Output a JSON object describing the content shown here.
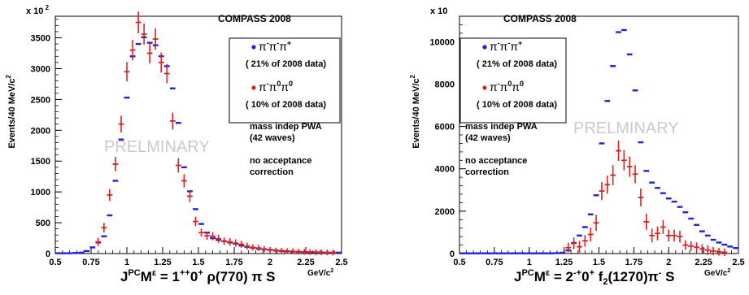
{
  "chart_data": [
    {
      "type": "scatter",
      "experiment_label": "COMPASS 2008",
      "y_multiplier_label": "x 10",
      "y_multiplier_exp": "2",
      "ylabel": "Events/40 MeV/c",
      "ylabel_sup": "2",
      "xunit": "GeV/c",
      "xunit_sup": "2",
      "xlabel_parts": [
        "J",
        "PC",
        "M",
        "ε",
        " = 1",
        "++",
        "0",
        "+",
        " ρ(770) π S"
      ],
      "xlim": [
        0.5,
        2.5
      ],
      "ylim": [
        0,
        3850
      ],
      "xticks": [
        0.5,
        0.75,
        1,
        1.25,
        1.5,
        1.75,
        2,
        2.25,
        2.5
      ],
      "xtick_labels": [
        "0.5",
        "0.75",
        "1",
        "1.25",
        "1.5",
        "1.75",
        "2",
        "2.25",
        "2.5"
      ],
      "yticks": [
        0,
        500,
        1000,
        1500,
        2000,
        2500,
        3000,
        3500
      ],
      "ytick_labels": [
        "0",
        "500",
        "1000",
        "1500",
        "2000",
        "2500",
        "3000",
        "3500"
      ],
      "legend": [
        {
          "color": "#1f1fe0",
          "label_base": "π",
          "label_sups": [
            "-",
            "-",
            "+"
          ],
          "sublabel": "( 21% of 2008 data)"
        },
        {
          "color": "#e01f1f",
          "label_base": "π",
          "label_sups": [
            "-",
            "0",
            "0"
          ],
          "sublabel": "( 10% of 2008 data)"
        }
      ],
      "notes": [
        "mass indep PWA",
        "(42 waves)",
        "",
        "no acceptance",
        "correction"
      ],
      "watermark": "PRELMINARY",
      "series": [
        {
          "name": "π-π-π+",
          "color": "#1f1fe0",
          "points": [
            {
              "x": 0.52,
              "y": 5
            },
            {
              "x": 0.56,
              "y": 5
            },
            {
              "x": 0.6,
              "y": 5
            },
            {
              "x": 0.64,
              "y": 10
            },
            {
              "x": 0.68,
              "y": 15
            },
            {
              "x": 0.72,
              "y": 40
            },
            {
              "x": 0.76,
              "y": 100
            },
            {
              "x": 0.8,
              "y": 180
            },
            {
              "x": 0.84,
              "y": 280
            },
            {
              "x": 0.88,
              "y": 620
            },
            {
              "x": 0.92,
              "y": 1180
            },
            {
              "x": 0.96,
              "y": 1850
            },
            {
              "x": 1.0,
              "y": 2530
            },
            {
              "x": 1.04,
              "y": 3200
            },
            {
              "x": 1.08,
              "y": 3400
            },
            {
              "x": 1.12,
              "y": 3510
            },
            {
              "x": 1.16,
              "y": 3420
            },
            {
              "x": 1.2,
              "y": 3380
            },
            {
              "x": 1.24,
              "y": 3200
            },
            {
              "x": 1.28,
              "y": 3040
            },
            {
              "x": 1.32,
              "y": 2680
            },
            {
              "x": 1.36,
              "y": 2120
            },
            {
              "x": 1.4,
              "y": 1400
            },
            {
              "x": 1.44,
              "y": 1010
            },
            {
              "x": 1.48,
              "y": 720
            },
            {
              "x": 1.52,
              "y": 480
            },
            {
              "x": 1.56,
              "y": 340
            },
            {
              "x": 1.6,
              "y": 250
            },
            {
              "x": 1.64,
              "y": 220
            },
            {
              "x": 1.68,
              "y": 200
            },
            {
              "x": 1.72,
              "y": 180
            },
            {
              "x": 1.76,
              "y": 160
            },
            {
              "x": 1.8,
              "y": 130
            },
            {
              "x": 1.84,
              "y": 110
            },
            {
              "x": 1.88,
              "y": 95
            },
            {
              "x": 1.92,
              "y": 80
            },
            {
              "x": 1.96,
              "y": 70
            },
            {
              "x": 2.0,
              "y": 60
            },
            {
              "x": 2.04,
              "y": 50
            },
            {
              "x": 2.08,
              "y": 42
            },
            {
              "x": 2.12,
              "y": 36
            },
            {
              "x": 2.16,
              "y": 32
            },
            {
              "x": 2.2,
              "y": 28
            },
            {
              "x": 2.24,
              "y": 25
            },
            {
              "x": 2.28,
              "y": 22
            },
            {
              "x": 2.32,
              "y": 20
            },
            {
              "x": 2.36,
              "y": 18
            },
            {
              "x": 2.4,
              "y": 16
            },
            {
              "x": 2.44,
              "y": 15
            },
            {
              "x": 2.48,
              "y": 14
            }
          ]
        },
        {
          "name": "π-π0π0",
          "color": "#e01f1f",
          "points": [
            {
              "x": 0.8,
              "y": 190,
              "err": 40
            },
            {
              "x": 0.84,
              "y": 420,
              "err": 50
            },
            {
              "x": 0.88,
              "y": 950,
              "err": 70
            },
            {
              "x": 0.92,
              "y": 1450,
              "err": 90
            },
            {
              "x": 0.96,
              "y": 2100,
              "err": 110
            },
            {
              "x": 1.0,
              "y": 2950,
              "err": 130
            },
            {
              "x": 1.04,
              "y": 3300,
              "err": 140
            },
            {
              "x": 1.08,
              "y": 3750,
              "err": 150
            },
            {
              "x": 1.12,
              "y": 3560,
              "err": 145
            },
            {
              "x": 1.16,
              "y": 3250,
              "err": 140
            },
            {
              "x": 1.2,
              "y": 3480,
              "err": 145
            },
            {
              "x": 1.24,
              "y": 3100,
              "err": 135
            },
            {
              "x": 1.28,
              "y": 2920,
              "err": 130
            },
            {
              "x": 1.32,
              "y": 2150,
              "err": 110
            },
            {
              "x": 1.36,
              "y": 1430,
              "err": 90
            },
            {
              "x": 1.4,
              "y": 1180,
              "err": 80
            },
            {
              "x": 1.44,
              "y": 930,
              "err": 70
            },
            {
              "x": 1.48,
              "y": 520,
              "err": 50
            },
            {
              "x": 1.52,
              "y": 340,
              "err": 40
            },
            {
              "x": 1.56,
              "y": 290,
              "err": 40
            },
            {
              "x": 1.6,
              "y": 280,
              "err": 40
            },
            {
              "x": 1.64,
              "y": 240,
              "err": 40
            },
            {
              "x": 1.68,
              "y": 200,
              "err": 35
            },
            {
              "x": 1.72,
              "y": 190,
              "err": 35
            },
            {
              "x": 1.76,
              "y": 170,
              "err": 35
            },
            {
              "x": 1.8,
              "y": 150,
              "err": 30
            },
            {
              "x": 1.84,
              "y": 120,
              "err": 30
            },
            {
              "x": 1.88,
              "y": 100,
              "err": 25
            },
            {
              "x": 1.92,
              "y": 90,
              "err": 25
            },
            {
              "x": 1.96,
              "y": 70,
              "err": 25
            },
            {
              "x": 2.0,
              "y": 60,
              "err": 20
            },
            {
              "x": 2.04,
              "y": 50,
              "err": 20
            },
            {
              "x": 2.08,
              "y": 45,
              "err": 20
            },
            {
              "x": 2.12,
              "y": 40,
              "err": 20
            },
            {
              "x": 2.16,
              "y": 35,
              "err": 20
            },
            {
              "x": 2.2,
              "y": 30,
              "err": 20
            },
            {
              "x": 2.24,
              "y": 28,
              "err": 20
            },
            {
              "x": 2.28,
              "y": 25,
              "err": 20
            },
            {
              "x": 2.32,
              "y": 22,
              "err": 20
            },
            {
              "x": 2.36,
              "y": 20,
              "err": 20
            },
            {
              "x": 2.4,
              "y": 18,
              "err": 20
            },
            {
              "x": 2.44,
              "y": 15,
              "err": 20
            }
          ]
        }
      ]
    },
    {
      "type": "scatter",
      "experiment_label": "COMPASS 2008",
      "y_multiplier_label": "x 10",
      "y_multiplier_exp": "",
      "ylabel": "Events/40 MeV/c",
      "ylabel_sup": "2",
      "xunit": "GeV/c",
      "xunit_sup": "2",
      "xlabel_parts": [
        "J",
        "PC",
        "M",
        "ε",
        " = 2",
        "-+",
        "0",
        "+",
        " f",
        "2",
        "(1270)π",
        "-",
        " S"
      ],
      "xlim": [
        0.5,
        2.5
      ],
      "ylim": [
        0,
        11200
      ],
      "xticks": [
        0.5,
        0.75,
        1,
        1.25,
        1.5,
        1.75,
        2,
        2.25,
        2.5
      ],
      "xtick_labels": [
        "0.5",
        "0.75",
        "1",
        "1.25",
        "1.5",
        "1.75",
        "2",
        "2.25",
        "2.5"
      ],
      "yticks": [
        0,
        2000,
        4000,
        6000,
        8000,
        10000
      ],
      "ytick_labels": [
        "0",
        "2000",
        "4000",
        "6000",
        "8000",
        "10000"
      ],
      "legend": [
        {
          "color": "#1f1fe0",
          "label_base": "π",
          "label_sups": [
            "-",
            "-",
            "+"
          ],
          "sublabel": "( 21% of 2008 data)"
        },
        {
          "color": "#e01f1f",
          "label_base": "π",
          "label_sups": [
            "-",
            "0",
            "0"
          ],
          "sublabel": "( 10% of 2008 data)"
        }
      ],
      "notes": [
        "mass indep PWA",
        "(42 waves)",
        "",
        "no acceptance",
        "correction"
      ],
      "watermark": "PRELMINARY",
      "series": [
        {
          "name": "π-π-π+",
          "color": "#1f1fe0",
          "points": [
            {
              "x": 0.52,
              "y": 10
            },
            {
              "x": 0.56,
              "y": 10
            },
            {
              "x": 0.6,
              "y": 10
            },
            {
              "x": 0.64,
              "y": 10
            },
            {
              "x": 0.68,
              "y": 10
            },
            {
              "x": 0.72,
              "y": 10
            },
            {
              "x": 0.76,
              "y": 10
            },
            {
              "x": 0.8,
              "y": 10
            },
            {
              "x": 0.84,
              "y": 10
            },
            {
              "x": 0.88,
              "y": 10
            },
            {
              "x": 0.92,
              "y": 10
            },
            {
              "x": 0.96,
              "y": 10
            },
            {
              "x": 1.0,
              "y": 10
            },
            {
              "x": 1.04,
              "y": 10
            },
            {
              "x": 1.08,
              "y": 10
            },
            {
              "x": 1.12,
              "y": 10
            },
            {
              "x": 1.16,
              "y": 10
            },
            {
              "x": 1.2,
              "y": 20
            },
            {
              "x": 1.24,
              "y": 40
            },
            {
              "x": 1.28,
              "y": 150
            },
            {
              "x": 1.32,
              "y": 500
            },
            {
              "x": 1.36,
              "y": 850
            },
            {
              "x": 1.4,
              "y": 1250
            },
            {
              "x": 1.44,
              "y": 1850
            },
            {
              "x": 1.48,
              "y": 2750
            },
            {
              "x": 1.52,
              "y": 5200
            },
            {
              "x": 1.56,
              "y": 7200
            },
            {
              "x": 1.6,
              "y": 8850
            },
            {
              "x": 1.64,
              "y": 10450
            },
            {
              "x": 1.68,
              "y": 10550
            },
            {
              "x": 1.72,
              "y": 9400
            },
            {
              "x": 1.76,
              "y": 7700
            },
            {
              "x": 1.8,
              "y": 5250
            },
            {
              "x": 1.84,
              "y": 3900
            },
            {
              "x": 1.88,
              "y": 3350
            },
            {
              "x": 1.92,
              "y": 3100
            },
            {
              "x": 1.96,
              "y": 2850
            },
            {
              "x": 2.0,
              "y": 2600
            },
            {
              "x": 2.04,
              "y": 2450
            },
            {
              "x": 2.08,
              "y": 2200
            },
            {
              "x": 2.12,
              "y": 1950
            },
            {
              "x": 2.16,
              "y": 1650
            },
            {
              "x": 2.2,
              "y": 1350
            },
            {
              "x": 2.24,
              "y": 1050
            },
            {
              "x": 2.28,
              "y": 850
            },
            {
              "x": 2.32,
              "y": 650
            },
            {
              "x": 2.36,
              "y": 520
            },
            {
              "x": 2.4,
              "y": 420
            },
            {
              "x": 2.44,
              "y": 330
            },
            {
              "x": 2.48,
              "y": 260
            }
          ]
        },
        {
          "name": "π-π0π0",
          "color": "#e01f1f",
          "points": [
            {
              "x": 1.28,
              "y": 280,
              "err": 150
            },
            {
              "x": 1.32,
              "y": 480,
              "err": 200
            },
            {
              "x": 1.36,
              "y": 320,
              "err": 200
            },
            {
              "x": 1.4,
              "y": 600,
              "err": 200
            },
            {
              "x": 1.44,
              "y": 900,
              "err": 250
            },
            {
              "x": 1.48,
              "y": 1450,
              "err": 300
            },
            {
              "x": 1.52,
              "y": 2950,
              "err": 350
            },
            {
              "x": 1.56,
              "y": 3250,
              "err": 350
            },
            {
              "x": 1.6,
              "y": 3700,
              "err": 400
            },
            {
              "x": 1.64,
              "y": 4850,
              "err": 400
            },
            {
              "x": 1.68,
              "y": 4400,
              "err": 400
            },
            {
              "x": 1.72,
              "y": 4100,
              "err": 400
            },
            {
              "x": 1.76,
              "y": 3750,
              "err": 350
            },
            {
              "x": 1.8,
              "y": 2650,
              "err": 350
            },
            {
              "x": 1.84,
              "y": 1500,
              "err": 300
            },
            {
              "x": 1.88,
              "y": 850,
              "err": 250
            },
            {
              "x": 1.92,
              "y": 950,
              "err": 250
            },
            {
              "x": 1.96,
              "y": 1250,
              "err": 250
            },
            {
              "x": 2.0,
              "y": 850,
              "err": 200
            },
            {
              "x": 2.04,
              "y": 850,
              "err": 200
            },
            {
              "x": 2.08,
              "y": 800,
              "err": 200
            },
            {
              "x": 2.12,
              "y": 400,
              "err": 150
            },
            {
              "x": 2.16,
              "y": 350,
              "err": 150
            },
            {
              "x": 2.2,
              "y": 300,
              "err": 150
            },
            {
              "x": 2.24,
              "y": 220,
              "err": 150
            },
            {
              "x": 2.28,
              "y": 160,
              "err": 150
            },
            {
              "x": 2.32,
              "y": 120,
              "err": 120
            },
            {
              "x": 2.36,
              "y": 80,
              "err": 100
            },
            {
              "x": 2.4,
              "y": 60,
              "err": 100
            }
          ]
        }
      ]
    }
  ]
}
